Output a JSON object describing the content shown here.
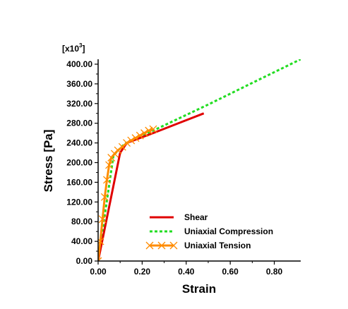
{
  "chart_data": {
    "type": "line",
    "xlabel": "Strain",
    "ylabel": "Stress [Pa]",
    "y_multiplier": "[x10",
    "y_multiplier_exp": "3",
    "y_multiplier_close": "]",
    "xlim": [
      0,
      0.92
    ],
    "ylim": [
      0,
      410
    ],
    "x_ticks": [
      0,
      0.2,
      0.4,
      0.6,
      0.8
    ],
    "x_tick_labels": [
      "0.00",
      "0.20",
      "0.40",
      "0.60",
      "0.80"
    ],
    "y_ticks": [
      0,
      40,
      80,
      120,
      160,
      200,
      240,
      280,
      320,
      360,
      400
    ],
    "y_tick_labels": [
      "0.00",
      "40.00",
      "80.00",
      "120.00",
      "160.00",
      "200.00",
      "240.00",
      "280.00",
      "320.00",
      "360.00",
      "400.00"
    ],
    "grid": false,
    "legend_position": "bottom-right",
    "series": [
      {
        "name": "Shear",
        "color": "#e00000",
        "style": "solid",
        "marker": "none",
        "x": [
          0,
          0.1,
          0.13,
          0.25,
          0.48
        ],
        "y": [
          0,
          220,
          240,
          260,
          300
        ]
      },
      {
        "name": "Uniaxial Compression",
        "color": "#22dd22",
        "style": "dotted",
        "marker": "none",
        "x": [
          0,
          0.07,
          0.12,
          0.25,
          0.5,
          0.7,
          0.92
        ],
        "y": [
          0,
          215,
          238,
          265,
          318,
          362,
          410
        ]
      },
      {
        "name": "Uniaxial Tension",
        "color": "#ff8c00",
        "style": "solid",
        "marker": "x",
        "x": [
          0,
          0.01,
          0.02,
          0.03,
          0.04,
          0.05,
          0.06,
          0.075,
          0.09,
          0.11,
          0.13,
          0.15,
          0.17,
          0.19,
          0.21,
          0.23,
          0.25
        ],
        "y": [
          0,
          40,
          85,
          130,
          165,
          195,
          210,
          218,
          225,
          232,
          240,
          245,
          250,
          255,
          260,
          265,
          268
        ]
      }
    ]
  }
}
